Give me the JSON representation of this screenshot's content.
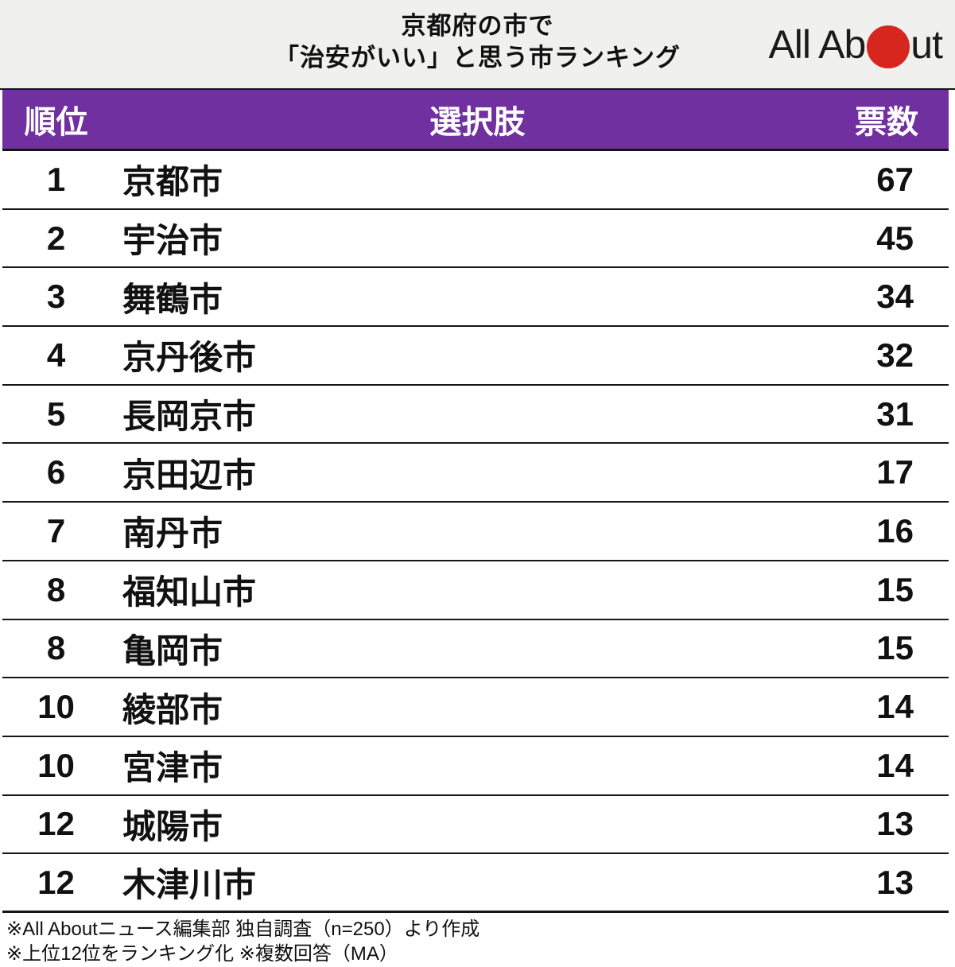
{
  "header": {
    "title_line1": "京都府の市で",
    "title_line2": "「治安がいい」と思う市ランキング",
    "logo": {
      "name": "All About",
      "text_before": "All Ab",
      "text_after": "ut",
      "dot_color": "#d7261d"
    }
  },
  "table": {
    "header_bg": "#7030a0",
    "columns": {
      "rank": "順位",
      "choice": "選択肢",
      "votes": "票数"
    },
    "rows": [
      {
        "rank": "1",
        "city": "京都市",
        "votes": "67"
      },
      {
        "rank": "2",
        "city": "宇治市",
        "votes": "45"
      },
      {
        "rank": "3",
        "city": "舞鶴市",
        "votes": "34"
      },
      {
        "rank": "4",
        "city": "京丹後市",
        "votes": "32"
      },
      {
        "rank": "5",
        "city": "長岡京市",
        "votes": "31"
      },
      {
        "rank": "6",
        "city": "京田辺市",
        "votes": "17"
      },
      {
        "rank": "7",
        "city": "南丹市",
        "votes": "16"
      },
      {
        "rank": "8",
        "city": "福知山市",
        "votes": "15"
      },
      {
        "rank": "8",
        "city": "亀岡市",
        "votes": "15"
      },
      {
        "rank": "10",
        "city": "綾部市",
        "votes": "14"
      },
      {
        "rank": "10",
        "city": "宮津市",
        "votes": "14"
      },
      {
        "rank": "12",
        "city": "城陽市",
        "votes": "13"
      },
      {
        "rank": "12",
        "city": "木津川市",
        "votes": "13"
      }
    ]
  },
  "footer": {
    "line1": "※All Aboutニュース編集部 独自調査（n=250）より作成",
    "line2": "※上位12位をランキング化 ※複数回答（MA）"
  },
  "chart_data": {
    "type": "table",
    "title": "京都府の市で「治安がいい」と思う市ランキング",
    "columns": [
      "順位",
      "選択肢",
      "票数"
    ],
    "categories": [
      "京都市",
      "宇治市",
      "舞鶴市",
      "京丹後市",
      "長岡京市",
      "京田辺市",
      "南丹市",
      "福知山市",
      "亀岡市",
      "綾部市",
      "宮津市",
      "城陽市",
      "木津川市"
    ],
    "ranks": [
      1,
      2,
      3,
      4,
      5,
      6,
      7,
      8,
      8,
      10,
      10,
      12,
      12
    ],
    "values": [
      67,
      45,
      34,
      32,
      31,
      17,
      16,
      15,
      15,
      14,
      14,
      13,
      13
    ],
    "notes": [
      "※All Aboutニュース編集部 独自調査（n=250）より作成",
      "※上位12位をランキング化 ※複数回答（MA）"
    ],
    "accent_color": "#7030a0"
  }
}
